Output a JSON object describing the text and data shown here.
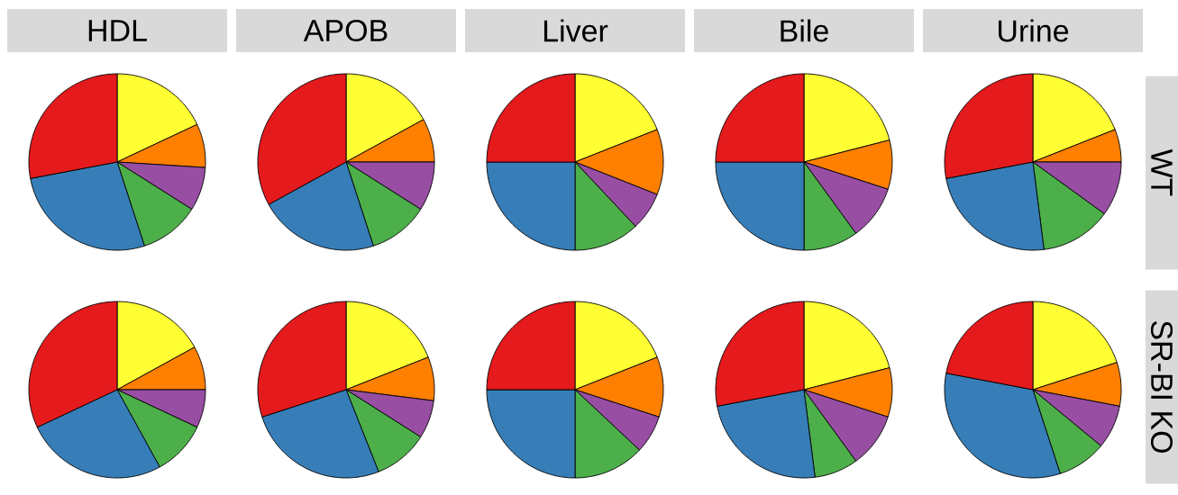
{
  "chart_data": [
    {
      "type": "pie",
      "title": "HDL",
      "categories": [
        null,
        null,
        null,
        null,
        null,
        null
      ],
      "values": [
        18,
        8,
        8,
        11,
        27,
        28
      ],
      "colors": [
        "#ffff33",
        "#ff7f00",
        "#984ea3",
        "#4daf4a",
        "#377eb8",
        "#e41a1c"
      ]
    },
    {
      "type": "pie",
      "title": "APOB",
      "categories": [
        null,
        null,
        null,
        null,
        null,
        null
      ],
      "values": [
        17,
        8,
        9,
        11,
        22,
        33
      ],
      "colors": [
        "#ffff33",
        "#ff7f00",
        "#984ea3",
        "#4daf4a",
        "#377eb8",
        "#e41a1c"
      ]
    },
    {
      "type": "pie",
      "title": "Liver",
      "categories": [
        null,
        null,
        null,
        null,
        null,
        null
      ],
      "values": [
        19,
        12,
        7,
        12,
        25,
        25
      ],
      "colors": [
        "#ffff33",
        "#ff7f00",
        "#984ea3",
        "#4daf4a",
        "#377eb8",
        "#e41a1c"
      ]
    },
    {
      "type": "pie",
      "title": "Bile",
      "categories": [
        null,
        null,
        null,
        null,
        null,
        null
      ],
      "values": [
        21,
        9,
        10,
        10,
        25,
        25
      ],
      "colors": [
        "#ffff33",
        "#ff7f00",
        "#984ea3",
        "#4daf4a",
        "#377eb8",
        "#e41a1c"
      ]
    },
    {
      "type": "pie",
      "title": "Urine",
      "y2label": "WT",
      "categories": [
        null,
        null,
        null,
        null,
        null,
        null
      ],
      "values": [
        19,
        6,
        10,
        13,
        24,
        28
      ],
      "colors": [
        "#ffff33",
        "#ff7f00",
        "#984ea3",
        "#4daf4a",
        "#377eb8",
        "#e41a1c"
      ]
    },
    {
      "type": "pie",
      "categories": [
        null,
        null,
        null,
        null,
        null,
        null
      ],
      "values": [
        17,
        8,
        7,
        10,
        26,
        32
      ],
      "colors": [
        "#ffff33",
        "#ff7f00",
        "#984ea3",
        "#4daf4a",
        "#377eb8",
        "#e41a1c"
      ]
    },
    {
      "type": "pie",
      "categories": [
        null,
        null,
        null,
        null,
        null,
        null
      ],
      "values": [
        19,
        8,
        7,
        10,
        26,
        30
      ],
      "colors": [
        "#ffff33",
        "#ff7f00",
        "#984ea3",
        "#4daf4a",
        "#377eb8",
        "#e41a1c"
      ]
    },
    {
      "type": "pie",
      "categories": [
        null,
        null,
        null,
        null,
        null,
        null
      ],
      "values": [
        19,
        11,
        7,
        13,
        25,
        25
      ],
      "colors": [
        "#ffff33",
        "#ff7f00",
        "#984ea3",
        "#4daf4a",
        "#377eb8",
        "#e41a1c"
      ]
    },
    {
      "type": "pie",
      "categories": [
        null,
        null,
        null,
        null,
        null,
        null
      ],
      "values": [
        21,
        9,
        10,
        8,
        24,
        28
      ],
      "colors": [
        "#ffff33",
        "#ff7f00",
        "#984ea3",
        "#4daf4a",
        "#377eb8",
        "#e41a1c"
      ]
    },
    {
      "type": "pie",
      "y2label": "SR-BI KO",
      "categories": [
        null,
        null,
        null,
        null,
        null,
        null
      ],
      "values": [
        20,
        8,
        8,
        9,
        33,
        22
      ],
      "colors": [
        "#ffff33",
        "#ff7f00",
        "#984ea3",
        "#4daf4a",
        "#377eb8",
        "#e41a1c"
      ]
    }
  ]
}
